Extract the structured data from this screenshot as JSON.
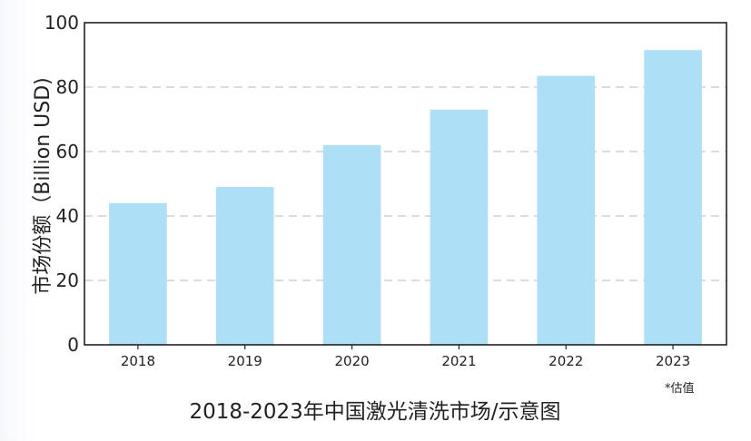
{
  "chart_data": {
    "type": "bar",
    "title": "2018-2023年中国激光清洗市场/示意图",
    "ylabel": "市场份额（Billion USD)",
    "xlabel": "",
    "note": "*估值",
    "categories": [
      "2018",
      "2019",
      "2020",
      "2021",
      "2022",
      "2023"
    ],
    "values": [
      44,
      49,
      62,
      73,
      83.5,
      91.5
    ],
    "ylim": [
      0,
      100
    ],
    "yticks": [
      "0",
      "20",
      "40",
      "60",
      "80",
      "100"
    ],
    "grid": true,
    "bar_color": "#ade0f7",
    "legend": "none"
  }
}
